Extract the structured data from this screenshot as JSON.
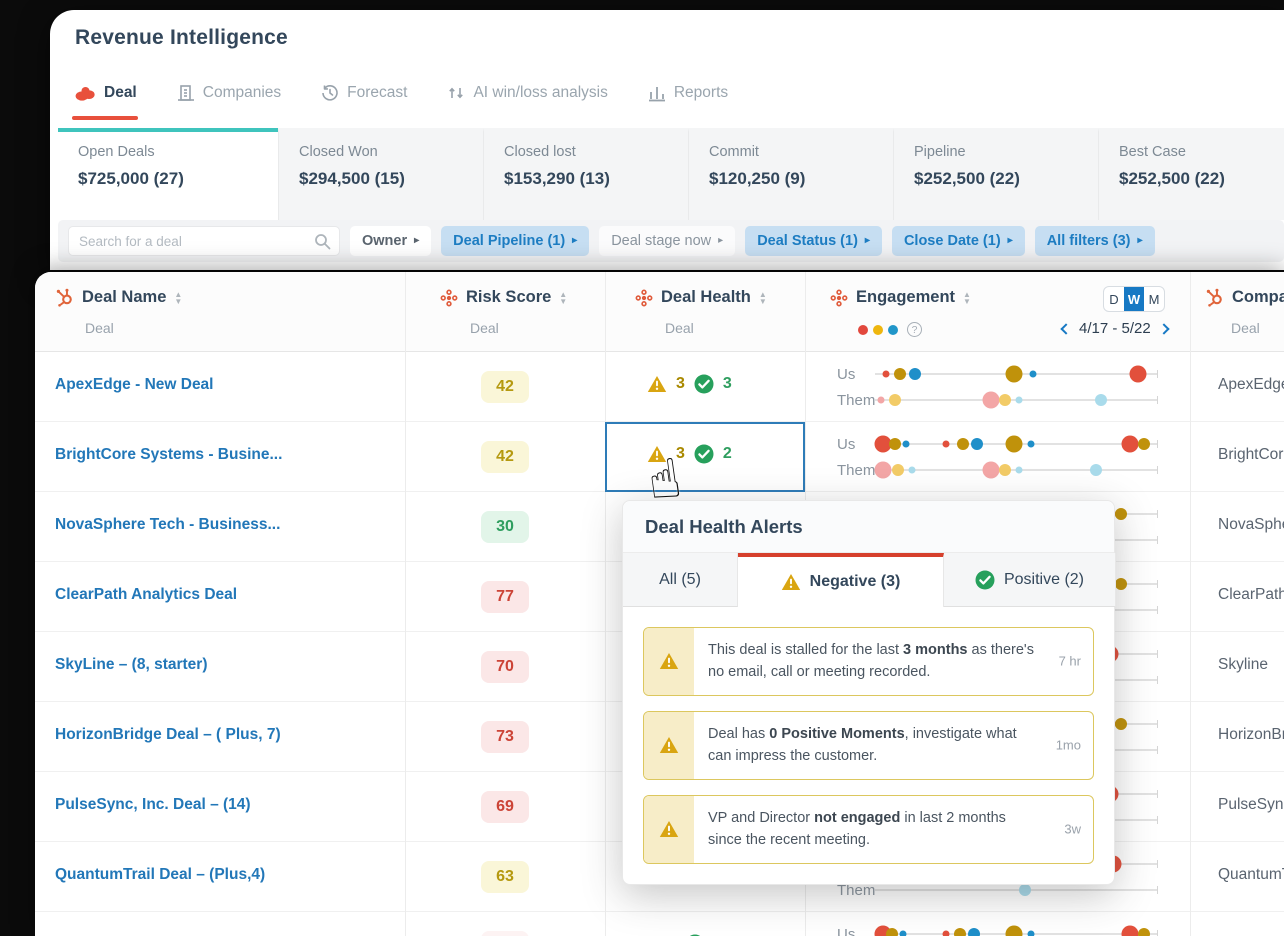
{
  "app": {
    "title": "Revenue Intelligence"
  },
  "tabs": [
    {
      "label": "Deal",
      "icon": "deal-logo-icon",
      "active": true
    },
    {
      "label": "Companies",
      "icon": "companies-icon",
      "active": false
    },
    {
      "label": "Forecast",
      "icon": "forecast-icon",
      "active": false
    },
    {
      "label": "AI win/loss analysis",
      "icon": "winloss-icon",
      "active": false
    },
    {
      "label": "Reports",
      "icon": "reports-icon",
      "active": false
    }
  ],
  "summary_cards": [
    {
      "label": "Open Deals",
      "value": "$725,000 (27)",
      "active": true
    },
    {
      "label": "Closed Won",
      "value": "$294,500 (15)",
      "active": false
    },
    {
      "label": "Closed lost",
      "value": "$153,290 (13)",
      "active": false
    },
    {
      "label": "Commit",
      "value": "$120,250 (9)",
      "active": false
    },
    {
      "label": "Pipeline",
      "value": "$252,500 (22)",
      "active": false
    },
    {
      "label": "Best Case",
      "value": "$252,500 (22)",
      "active": false
    }
  ],
  "filters": {
    "search_placeholder": "Search for a deal",
    "buttons": [
      {
        "label": "Owner",
        "style": "white"
      },
      {
        "label": "Deal Pipeline (1)",
        "style": "blue"
      },
      {
        "label": "Deal stage now",
        "style": "ghost"
      },
      {
        "label": "Deal Status (1)",
        "style": "blue"
      },
      {
        "label": "Close Date (1)",
        "style": "blue"
      },
      {
        "label": "All filters (3)",
        "style": "blue"
      }
    ]
  },
  "table": {
    "columns": {
      "deal_name": {
        "label": "Deal Name",
        "sub": "Deal",
        "icon": "hubspot-icon"
      },
      "risk": {
        "label": "Risk Score",
        "sub": "Deal",
        "icon": "avoma-icon"
      },
      "health": {
        "label": "Deal Health",
        "sub": "Deal",
        "icon": "avoma-icon"
      },
      "engagement": {
        "label": "Engagement",
        "icon": "avoma-icon",
        "legend_dots": [
          "#e2483d",
          "#eeb60e",
          "#2196c9"
        ],
        "toggle": [
          "D",
          "W",
          "M"
        ],
        "toggle_active": "W",
        "date_range": "4/17 - 5/22"
      },
      "company": {
        "label": "Company",
        "sub": "Deal",
        "icon": "hubspot-icon"
      }
    },
    "engagement_row_labels": [
      "Us",
      "Them"
    ],
    "rows": [
      {
        "name": "ApexEdge - New Deal",
        "risk": "42",
        "risk_level": "yellow",
        "neg": "3",
        "pos": "3",
        "company": "ApexEdge",
        "selected": false,
        "us": [
          [
            4,
            "red",
            "sm"
          ],
          [
            9,
            "dky",
            "md"
          ],
          [
            14,
            "blue",
            "md"
          ],
          [
            49,
            "dky",
            "lg"
          ],
          [
            56,
            "blue",
            "sm"
          ],
          [
            93,
            "red",
            "lg"
          ]
        ],
        "them": [
          [
            2,
            "pink",
            "sm"
          ],
          [
            7,
            "lyel",
            "md"
          ],
          [
            41,
            "pink",
            "lg"
          ],
          [
            46,
            "lyel",
            "md"
          ],
          [
            51,
            "lblue",
            "sm"
          ],
          [
            80,
            "lblue",
            "md"
          ]
        ]
      },
      {
        "name": "BrightCore Systems - Busine...",
        "risk": "42",
        "risk_level": "yellow",
        "neg": "3",
        "pos": "2",
        "company": "BrightCore",
        "selected": true,
        "us": [
          [
            3,
            "red",
            "lg"
          ],
          [
            7,
            "dky",
            "md"
          ],
          [
            11,
            "blue",
            "sm"
          ],
          [
            25,
            "red",
            "sm"
          ],
          [
            31,
            "dky",
            "md"
          ],
          [
            36,
            "blue",
            "md"
          ],
          [
            49,
            "dky",
            "lg"
          ],
          [
            55,
            "blue",
            "sm"
          ],
          [
            90,
            "red",
            "lg"
          ],
          [
            95,
            "dky",
            "md"
          ]
        ],
        "them": [
          [
            3,
            "pink",
            "lg"
          ],
          [
            8,
            "lyel",
            "md"
          ],
          [
            13,
            "lblue",
            "sm"
          ],
          [
            41,
            "pink",
            "lg"
          ],
          [
            46,
            "lyel",
            "md"
          ],
          [
            51,
            "lblue",
            "sm"
          ],
          [
            78,
            "lblue",
            "md"
          ]
        ]
      },
      {
        "name": "NovaSphere Tech - Business...",
        "risk": "30",
        "risk_level": "green",
        "neg": null,
        "pos": null,
        "company": "NovaSphere",
        "selected": false,
        "us": [
          [
            82,
            "red",
            "lg"
          ],
          [
            87,
            "dky",
            "md"
          ]
        ],
        "them": []
      },
      {
        "name": "ClearPath Analytics Deal",
        "risk": "77",
        "risk_level": "red",
        "neg": null,
        "pos": null,
        "company": "ClearPath",
        "selected": false,
        "us": [
          [
            82,
            "red",
            "lg"
          ],
          [
            87,
            "dky",
            "md"
          ]
        ],
        "them": []
      },
      {
        "name": "SkyLine – (8, starter)",
        "risk": "70",
        "risk_level": "red",
        "neg": null,
        "pos": null,
        "company": "Skyline",
        "selected": false,
        "us": [
          [
            83,
            "red",
            "lg"
          ]
        ],
        "them": []
      },
      {
        "name": "HorizonBridge Deal – ( Plus, 7)",
        "risk": "73",
        "risk_level": "red",
        "neg": null,
        "pos": null,
        "company": "HorizonBridge",
        "selected": false,
        "us": [
          [
            82,
            "red",
            "lg"
          ],
          [
            87,
            "dky",
            "md"
          ]
        ],
        "them": []
      },
      {
        "name": "PulseSync, Inc. Deal – (14)",
        "risk": "69",
        "risk_level": "red",
        "neg": null,
        "pos": null,
        "company": "PulseSync",
        "selected": false,
        "us": [
          [
            83,
            "red",
            "lg"
          ]
        ],
        "them": []
      },
      {
        "name": "QuantumTrail Deal – (Plus,4)",
        "risk": "63",
        "risk_level": "yellow",
        "neg": null,
        "pos": null,
        "company": "QuantumTrail",
        "selected": false,
        "us": [
          [
            84,
            "red",
            "lg"
          ]
        ],
        "them": [
          [
            53,
            "lblue",
            "md"
          ]
        ]
      },
      {
        "name": "",
        "risk": "",
        "risk_level": "red",
        "neg": "",
        "pos": "",
        "company": "",
        "selected": false,
        "us": [
          [
            3,
            "red",
            "lg"
          ],
          [
            6,
            "dky",
            "md"
          ],
          [
            10,
            "blue",
            "sm"
          ],
          [
            25,
            "red",
            "sm"
          ],
          [
            30,
            "dky",
            "md"
          ],
          [
            35,
            "blue",
            "md"
          ],
          [
            49,
            "dky",
            "lg"
          ],
          [
            55,
            "blue",
            "sm"
          ],
          [
            90,
            "red",
            "lg"
          ],
          [
            95,
            "dky",
            "md"
          ]
        ],
        "them": []
      }
    ]
  },
  "popup": {
    "title": "Deal Health Alerts",
    "tabs": [
      {
        "label": "All (5)",
        "icon": null,
        "active": false
      },
      {
        "label": "Negative (3)",
        "icon": "warning-icon",
        "active": true
      },
      {
        "label": "Positive (2)",
        "icon": "check-icon",
        "active": false
      }
    ],
    "alerts": [
      {
        "time": "7 hr",
        "segments": [
          {
            "t": "This deal is stalled for the last "
          },
          {
            "t": "3 months",
            "b": true
          },
          {
            "t": " as there's no email, call or meeting recorded."
          }
        ]
      },
      {
        "time": "1mo",
        "segments": [
          {
            "t": "Deal has "
          },
          {
            "t": "0 Positive Moments",
            "b": true
          },
          {
            "t": ", investigate what can impress the customer."
          }
        ]
      },
      {
        "time": "3w",
        "segments": [
          {
            "t": "VP and Director "
          },
          {
            "t": "not engaged",
            "b": true
          },
          {
            "t": " in last 2 months since the recent meeting."
          }
        ]
      }
    ]
  },
  "colors": {
    "accent_red": "#e8503c",
    "accent_teal": "#3fc4bd",
    "link_blue": "#2277b8",
    "filter_blue": "#1d7dc2",
    "dots": {
      "red": "#e2503c",
      "dky": "#c0920b",
      "blue": "#1f8fc9",
      "pink": "#f3a6a6",
      "lyel": "#f2cb67",
      "lblue": "#a9dbeb"
    }
  }
}
